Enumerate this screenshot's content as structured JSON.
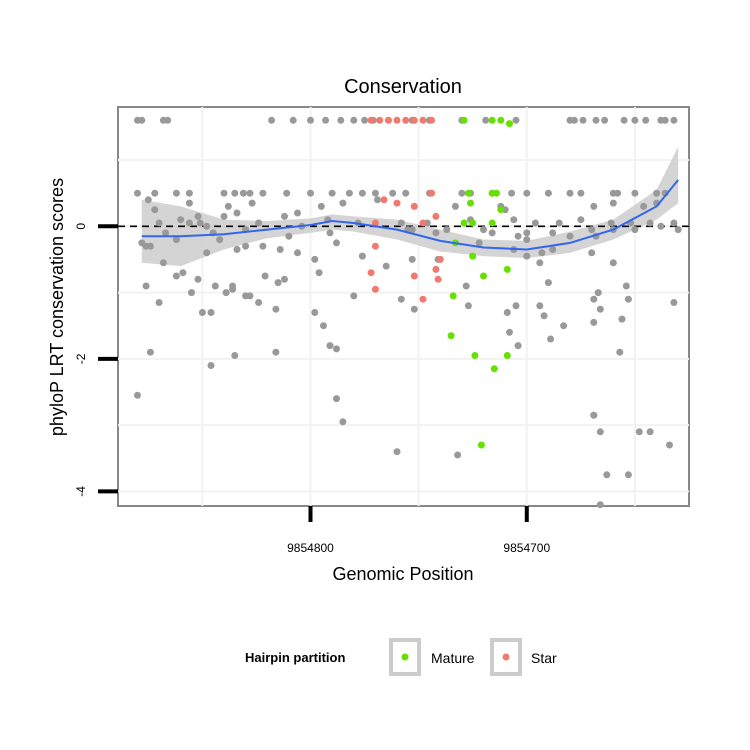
{
  "chart_data": {
    "type": "scatter",
    "title": "Conservation",
    "xlabel": "Genomic Position",
    "ylabel": "phyloP LRT conservation scores",
    "x_reversed": true,
    "xlim": [
      9854889,
      9854625
    ],
    "ylim": [
      -4.22,
      1.8
    ],
    "x_ticks": [
      9854800,
      9854700
    ],
    "x_tick_labels": [
      "9854800",
      "9854700"
    ],
    "y_ticks": [
      0,
      -2,
      -4
    ],
    "y_tick_labels": [
      "0",
      "-2",
      "-4"
    ],
    "grid": true,
    "reference_line": {
      "y": 0,
      "style": "dashed"
    },
    "legend": {
      "title": "Hairpin partition",
      "position": "bottom",
      "entries": [
        {
          "label": "Mature",
          "color": "#66e000"
        },
        {
          "label": "Star",
          "color": "#f07a6e"
        }
      ]
    },
    "colors": {
      "other": "#999999",
      "Mature": "#66e000",
      "Star": "#f07a6e",
      "smooth": "#3366ee",
      "ribbon": "#cccccc"
    },
    "series": [
      {
        "name": "Other",
        "points": [
          [
            9854880,
            1.6
          ],
          [
            9854878,
            1.6
          ],
          [
            9854868,
            1.6
          ],
          [
            9854866,
            1.6
          ],
          [
            9854818,
            1.6
          ],
          [
            9854808,
            1.6
          ],
          [
            9854800,
            1.6
          ],
          [
            9854793,
            1.6
          ],
          [
            9854786,
            1.6
          ],
          [
            9854780,
            1.6
          ],
          [
            9854775,
            1.6
          ],
          [
            9854771,
            1.6
          ],
          [
            9854764,
            1.6
          ],
          [
            9854753,
            1.6
          ],
          [
            9854745,
            1.6
          ],
          [
            9854730,
            1.6
          ],
          [
            9854719,
            1.6
          ],
          [
            9854705,
            1.6
          ],
          [
            9854680,
            1.6
          ],
          [
            9854678,
            1.6
          ],
          [
            9854674,
            1.6
          ],
          [
            9854668,
            1.6
          ],
          [
            9854664,
            1.6
          ],
          [
            9854655,
            1.6
          ],
          [
            9854650,
            1.6
          ],
          [
            9854645,
            1.6
          ],
          [
            9854638,
            1.6
          ],
          [
            9854636,
            1.6
          ],
          [
            9854632,
            1.6
          ],
          [
            9854880,
            0.5
          ],
          [
            9854872,
            0.5
          ],
          [
            9854862,
            0.5
          ],
          [
            9854856,
            0.5
          ],
          [
            9854840,
            0.5
          ],
          [
            9854835,
            0.5
          ],
          [
            9854831,
            0.5
          ],
          [
            9854828,
            0.5
          ],
          [
            9854822,
            0.5
          ],
          [
            9854811,
            0.5
          ],
          [
            9854800,
            0.5
          ],
          [
            9854790,
            0.5
          ],
          [
            9854782,
            0.5
          ],
          [
            9854776,
            0.5
          ],
          [
            9854770,
            0.5
          ],
          [
            9854762,
            0.5
          ],
          [
            9854756,
            0.5
          ],
          [
            9854745,
            0.5
          ],
          [
            9854730,
            0.5
          ],
          [
            9854726,
            0.5
          ],
          [
            9854716,
            0.5
          ],
          [
            9854707,
            0.5
          ],
          [
            9854700,
            0.5
          ],
          [
            9854690,
            0.5
          ],
          [
            9854680,
            0.5
          ],
          [
            9854675,
            0.5
          ],
          [
            9854660,
            0.5
          ],
          [
            9854658,
            0.5
          ],
          [
            9854650,
            0.5
          ],
          [
            9854640,
            0.5
          ],
          [
            9854636,
            0.5
          ],
          [
            9854875,
            0.4
          ],
          [
            9854856,
            0.35
          ],
          [
            9854838,
            0.3
          ],
          [
            9854827,
            0.35
          ],
          [
            9854795,
            0.3
          ],
          [
            9854785,
            0.35
          ],
          [
            9854769,
            0.4
          ],
          [
            9854733,
            0.3
          ],
          [
            9854712,
            0.3
          ],
          [
            9854710,
            0.25
          ],
          [
            9854669,
            0.3
          ],
          [
            9854660,
            0.35
          ],
          [
            9854646,
            0.3
          ],
          [
            9854640,
            0.35
          ],
          [
            9854872,
            0.25
          ],
          [
            9854852,
            0.15
          ],
          [
            9854840,
            0.15
          ],
          [
            9854834,
            0.2
          ],
          [
            9854812,
            0.15
          ],
          [
            9854806,
            0.2
          ],
          [
            9854792,
            0.1
          ],
          [
            9854758,
            0.05
          ],
          [
            9854746,
            0.05
          ],
          [
            9854726,
            0.1
          ],
          [
            9854706,
            0.1
          ],
          [
            9854696,
            0.05
          ],
          [
            9854685,
            0.05
          ],
          [
            9854675,
            0.1
          ],
          [
            9854661,
            0.05
          ],
          [
            9854652,
            0.05
          ],
          [
            9854643,
            0.05
          ],
          [
            9854638,
            0.0
          ],
          [
            9854632,
            0.05
          ],
          [
            9854870,
            0.05
          ],
          [
            9854860,
            0.1
          ],
          [
            9854856,
            0.05
          ],
          [
            9854851,
            0.05
          ],
          [
            9854848,
            0.0
          ],
          [
            9854830,
            -0.05
          ],
          [
            9854824,
            0.05
          ],
          [
            9854804,
            0.0
          ],
          [
            9854778,
            0.05
          ],
          [
            9854753,
            -0.05
          ],
          [
            9854737,
            -0.05
          ],
          [
            9854720,
            -0.05
          ],
          [
            9854716,
            -0.1
          ],
          [
            9854700,
            -0.1
          ],
          [
            9854688,
            -0.1
          ],
          [
            9854680,
            -0.15
          ],
          [
            9854670,
            -0.05
          ],
          [
            9854650,
            -0.05
          ],
          [
            9854630,
            -0.05
          ],
          [
            9854878,
            -0.25
          ],
          [
            9854876,
            -0.3
          ],
          [
            9854874,
            -0.3
          ],
          [
            9854867,
            -0.1
          ],
          [
            9854862,
            -0.2
          ],
          [
            9854845,
            -0.1
          ],
          [
            9854842,
            -0.2
          ],
          [
            9854830,
            -0.3
          ],
          [
            9854810,
            -0.15
          ],
          [
            9854791,
            -0.1
          ],
          [
            9854788,
            -0.25
          ],
          [
            9854755,
            -0.05
          ],
          [
            9854742,
            -0.1
          ],
          [
            9854722,
            -0.25
          ],
          [
            9854706,
            -0.35
          ],
          [
            9854704,
            -0.15
          ],
          [
            9854700,
            -0.2
          ],
          [
            9854693,
            -0.4
          ],
          [
            9854688,
            -0.35
          ],
          [
            9854670,
            -0.4
          ],
          [
            9854668,
            -0.15
          ],
          [
            9854660,
            -0.05
          ],
          [
            9854868,
            -0.55
          ],
          [
            9854848,
            -0.4
          ],
          [
            9854834,
            -0.35
          ],
          [
            9854822,
            -0.3
          ],
          [
            9854814,
            -0.35
          ],
          [
            9854806,
            -0.4
          ],
          [
            9854798,
            -0.5
          ],
          [
            9854776,
            -0.45
          ],
          [
            9854753,
            -0.5
          ],
          [
            9854741,
            -0.5
          ],
          [
            9854700,
            -0.45
          ],
          [
            9854694,
            -0.55
          ],
          [
            9854660,
            -0.55
          ],
          [
            9854862,
            -0.75
          ],
          [
            9854859,
            -0.7
          ],
          [
            9854852,
            -0.8
          ],
          [
            9854844,
            -0.9
          ],
          [
            9854836,
            -0.9
          ],
          [
            9854821,
            -0.75
          ],
          [
            9854815,
            -0.85
          ],
          [
            9854812,
            -0.8
          ],
          [
            9854796,
            -0.7
          ],
          [
            9854765,
            -0.6
          ],
          [
            9854728,
            -0.9
          ],
          [
            9854690,
            -0.85
          ],
          [
            9854654,
            -0.9
          ],
          [
            9854876,
            -0.9
          ],
          [
            9854855,
            -1.0
          ],
          [
            9854839,
            -1.0
          ],
          [
            9854836,
            -0.95
          ],
          [
            9854830,
            -1.05
          ],
          [
            9854828,
            -1.05
          ],
          [
            9854824,
            -1.15
          ],
          [
            9854798,
            -1.3
          ],
          [
            9854794,
            -1.5
          ],
          [
            9854780,
            -1.05
          ],
          [
            9854727,
            -1.2
          ],
          [
            9854694,
            -1.2
          ],
          [
            9854669,
            -1.1
          ],
          [
            9854667,
            -1.0
          ],
          [
            9854653,
            -1.1
          ],
          [
            9854632,
            -1.15
          ],
          [
            9854870,
            -1.15
          ],
          [
            9854850,
            -1.3
          ],
          [
            9854846,
            -1.3
          ],
          [
            9854816,
            -1.25
          ],
          [
            9854758,
            -1.1
          ],
          [
            9854752,
            -1.25
          ],
          [
            9854709,
            -1.3
          ],
          [
            9854705,
            -1.2
          ],
          [
            9854692,
            -1.35
          ],
          [
            9854683,
            -1.5
          ],
          [
            9854669,
            -1.45
          ],
          [
            9854666,
            -1.25
          ],
          [
            9854656,
            -1.4
          ],
          [
            9854874,
            -1.9
          ],
          [
            9854846,
            -2.1
          ],
          [
            9854835,
            -1.95
          ],
          [
            9854816,
            -1.9
          ],
          [
            9854791,
            -1.8
          ],
          [
            9854788,
            -1.85
          ],
          [
            9854708,
            -1.6
          ],
          [
            9854704,
            -1.8
          ],
          [
            9854689,
            -1.7
          ],
          [
            9854657,
            -1.9
          ],
          [
            9854880,
            -2.55
          ],
          [
            9854788,
            -2.6
          ],
          [
            9854785,
            -2.95
          ],
          [
            9854669,
            -2.85
          ],
          [
            9854643,
            -3.1
          ],
          [
            9854634,
            -3.3
          ],
          [
            9854760,
            -3.4
          ],
          [
            9854732,
            -3.45
          ],
          [
            9854669,
            -2.85
          ],
          [
            9854666,
            -3.1
          ],
          [
            9854663,
            -3.75
          ],
          [
            9854666,
            -4.2
          ],
          [
            9854653,
            -3.75
          ],
          [
            9854648,
            -3.1
          ]
        ]
      },
      {
        "name": "Mature",
        "points": [
          [
            9854729,
            1.6
          ],
          [
            9854716,
            1.6
          ],
          [
            9854712,
            1.6
          ],
          [
            9854708,
            1.55
          ],
          [
            9854727,
            0.5
          ],
          [
            9854716,
            0.5
          ],
          [
            9854714,
            0.5
          ],
          [
            9854726,
            0.35
          ],
          [
            9854712,
            0.25
          ],
          [
            9854729,
            0.05
          ],
          [
            9854725,
            0.05
          ],
          [
            9854716,
            0.05
          ],
          [
            9854733,
            -0.25
          ],
          [
            9854725,
            -0.45
          ],
          [
            9854720,
            -0.75
          ],
          [
            9854709,
            -0.65
          ],
          [
            9854734,
            -1.05
          ],
          [
            9854735,
            -1.65
          ],
          [
            9854709,
            -1.95
          ],
          [
            9854724,
            -1.95
          ],
          [
            9854715,
            -2.15
          ],
          [
            9854721,
            -3.3
          ]
        ]
      },
      {
        "name": "Star",
        "points": [
          [
            9854772,
            1.6
          ],
          [
            9854768,
            1.6
          ],
          [
            9854764,
            1.6
          ],
          [
            9854760,
            1.6
          ],
          [
            9854756,
            1.6
          ],
          [
            9854752,
            1.6
          ],
          [
            9854748,
            1.6
          ],
          [
            9854744,
            1.6
          ],
          [
            9854744,
            0.5
          ],
          [
            9854766,
            0.4
          ],
          [
            9854760,
            0.35
          ],
          [
            9854752,
            0.3
          ],
          [
            9854742,
            0.15
          ],
          [
            9854770,
            0.05
          ],
          [
            9854748,
            0.05
          ],
          [
            9854770,
            -0.3
          ],
          [
            9854740,
            -0.5
          ],
          [
            9854742,
            -0.65
          ],
          [
            9854772,
            -0.7
          ],
          [
            9854752,
            -0.75
          ],
          [
            9854741,
            -0.8
          ],
          [
            9854770,
            -0.95
          ],
          [
            9854748,
            -1.1
          ]
        ]
      }
    ],
    "smooth": {
      "x": [
        9854878,
        9854860,
        9854840,
        9854820,
        9854800,
        9854790,
        9854780,
        9854760,
        9854740,
        9854720,
        9854700,
        9854680,
        9854660,
        9854640,
        9854630
      ],
      "y": [
        -0.15,
        -0.15,
        -0.12,
        -0.05,
        0.02,
        0.08,
        0.05,
        -0.05,
        -0.22,
        -0.32,
        -0.35,
        -0.25,
        -0.05,
        0.3,
        0.7
      ],
      "lower": [
        -0.55,
        -0.6,
        -0.35,
        -0.18,
        -0.1,
        -0.05,
        -0.08,
        -0.2,
        -0.38,
        -0.45,
        -0.48,
        -0.4,
        -0.2,
        0.1,
        0.35
      ],
      "upper": [
        0.4,
        0.3,
        0.1,
        0.08,
        0.12,
        0.18,
        0.15,
        0.1,
        -0.05,
        -0.2,
        -0.22,
        -0.08,
        0.1,
        0.55,
        1.2
      ]
    }
  }
}
